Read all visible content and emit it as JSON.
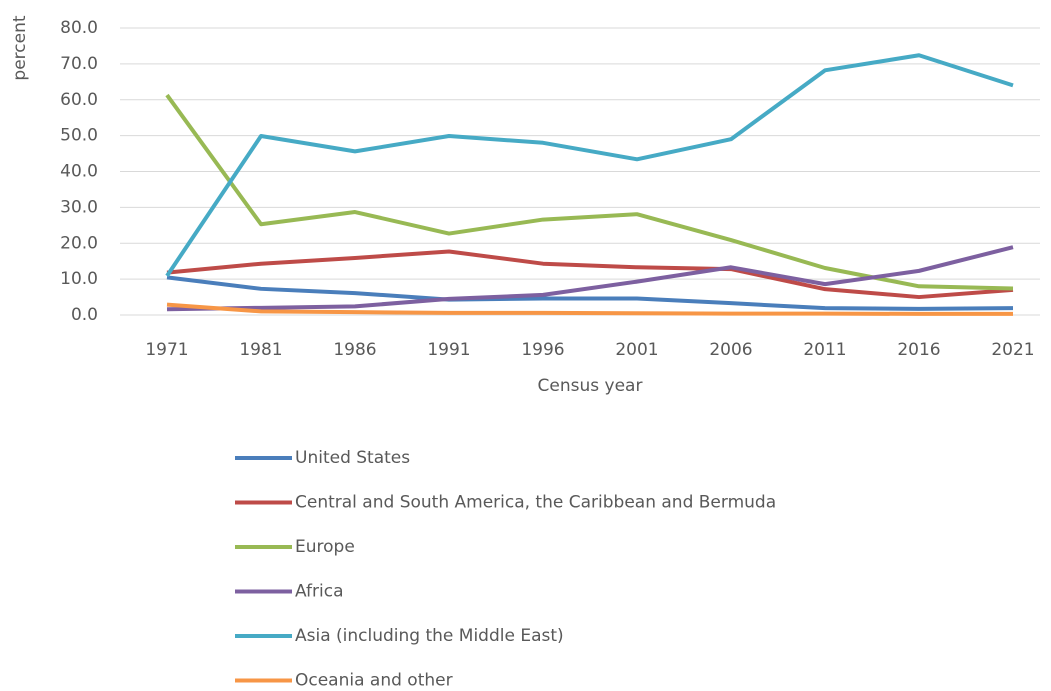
{
  "chart_data": {
    "type": "line",
    "y_label": "percent",
    "x_label": "Census year",
    "categories": [
      "1971",
      "1981",
      "1986",
      "1991",
      "1996",
      "2001",
      "2006",
      "2011",
      "2016",
      "2021"
    ],
    "series": [
      {
        "name": "United States",
        "color": "#4a7ebb",
        "values": [
          10.5,
          7.3,
          6.1,
          4.3,
          4.6,
          4.6,
          3.3,
          1.9,
          1.7,
          1.9
        ]
      },
      {
        "name": "Central and South America, the Caribbean and Bermuda",
        "color": "#be4b48",
        "values": [
          11.8,
          14.3,
          15.9,
          17.7,
          14.3,
          13.3,
          12.8,
          7.2,
          5.0,
          7.0
        ]
      },
      {
        "name": "Europe",
        "color": "#98b954",
        "values": [
          61.3,
          25.3,
          28.7,
          22.7,
          26.6,
          28.1,
          20.9,
          13.1,
          8.0,
          7.4
        ]
      },
      {
        "name": "Africa",
        "color": "#7d60a0",
        "values": [
          1.6,
          2.0,
          2.4,
          4.5,
          5.6,
          9.3,
          13.3,
          8.6,
          12.3,
          18.9
        ]
      },
      {
        "name": "Asia (including the Middle East)",
        "color": "#46aac5",
        "values": [
          10.9,
          49.9,
          45.6,
          49.9,
          48.0,
          43.4,
          49.0,
          68.2,
          72.4,
          64.0
        ]
      },
      {
        "name": "Oceania and other",
        "color": "#f79646",
        "values": [
          2.9,
          1.0,
          0.8,
          0.6,
          0.6,
          0.5,
          0.4,
          0.4,
          0.3,
          0.3
        ]
      }
    ],
    "ylim": [
      0,
      80
    ],
    "yticks": [
      {
        "value": 0,
        "label": "0.0"
      },
      {
        "value": 10,
        "label": "10.0"
      },
      {
        "value": 20,
        "label": "20.0"
      },
      {
        "value": 30,
        "label": "30.0"
      },
      {
        "value": 40,
        "label": "40.0"
      },
      {
        "value": 50,
        "label": "50.0"
      },
      {
        "value": 60,
        "label": "60.0"
      },
      {
        "value": 70,
        "label": "70.0"
      },
      {
        "value": 80,
        "label": "80.0"
      }
    ],
    "grid": true,
    "legend": "bottom"
  }
}
